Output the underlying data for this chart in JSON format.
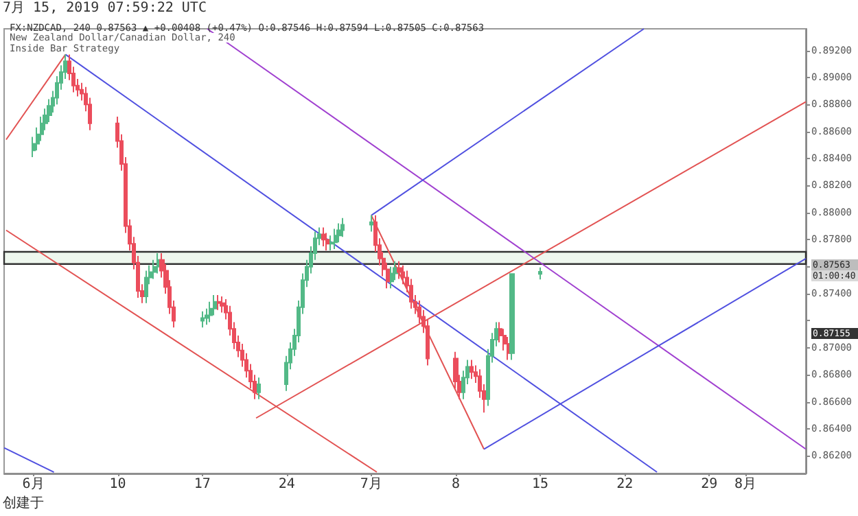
{
  "chart_data": {
    "type": "candlestick",
    "title": "FX:NZDCAD, 240 0.87563 ▲ +0.00408 (+0.47%) O:0.87546 H:0.87594 L:0.87505 C:0.87563",
    "subtitle": "New Zealand Dollar/Canadian Dollar, 240",
    "annotations": [
      "7月 15, 2019 07:59:22 UTC",
      "Inside Bar Strategy",
      "0.87563",
      "01:00:40",
      "0.87155",
      "创建于"
    ],
    "xlim": [
      "2019-05-31T14:00",
      "2019-08-06T00:00"
    ],
    "xticks": [
      {
        "value": "2019-06-03",
        "label": "6月"
      },
      {
        "value": "2019-06-10",
        "label": "10"
      },
      {
        "value": "2019-06-17",
        "label": "17"
      },
      {
        "value": "2019-06-24",
        "label": "24"
      },
      {
        "value": "2019-07-01",
        "label": "7月"
      },
      {
        "value": "2019-07-08",
        "label": "8"
      },
      {
        "value": "2019-07-15",
        "label": "15"
      },
      {
        "value": "2019-07-22",
        "label": "22"
      },
      {
        "value": "2019-07-29",
        "label": "29"
      },
      {
        "value": "2019-08-01",
        "label": "8月"
      }
    ],
    "ylim": [
      0.8607,
      0.8936
    ],
    "yticks": [
      {
        "value": 0.862,
        "label": "0.86200"
      },
      {
        "value": 0.864,
        "label": "0.86400"
      },
      {
        "value": 0.866,
        "label": "0.86600"
      },
      {
        "value": 0.868,
        "label": "0.86800"
      },
      {
        "value": 0.87,
        "label": "0.87000"
      },
      {
        "value": 0.872,
        "label": null
      },
      {
        "value": 0.874,
        "label": "0.87400"
      },
      {
        "value": 0.876,
        "label": null
      },
      {
        "value": 0.878,
        "label": "0.87800"
      },
      {
        "value": 0.88,
        "label": "0.88000"
      },
      {
        "value": 0.882,
        "label": "0.88200"
      },
      {
        "value": 0.884,
        "label": "0.88400"
      },
      {
        "value": 0.886,
        "label": "0.88600"
      },
      {
        "value": 0.888,
        "label": "0.88800"
      },
      {
        "value": 0.89,
        "label": "0.89000"
      },
      {
        "value": 0.892,
        "label": "0.89200"
      }
    ],
    "grid": false,
    "bands": [
      {
        "axis": "y",
        "from": 0.8762,
        "to": 0.8771,
        "color": "#eef7ee"
      }
    ],
    "series": [
      {
        "type": "candlestick",
        "x": [
          "2019-06-03T00:00",
          "2019-06-03T08:00",
          "2019-06-03T16:00",
          "2019-06-04T00:00",
          "2019-06-04T08:00",
          "2019-06-04T16:00",
          "2019-06-05T00:00",
          "2019-06-05T08:00",
          "2019-06-05T16:00",
          "2019-06-06T00:00",
          "2019-06-06T08:00",
          "2019-06-06T16:00",
          "2019-06-07T00:00",
          "2019-06-07T08:00",
          "2019-06-07T16:00",
          "2019-06-10T00:00",
          "2019-06-10T08:00",
          "2019-06-10T16:00",
          "2019-06-11T00:00",
          "2019-06-11T08:00",
          "2019-06-11T16:00",
          "2019-06-12T00:00",
          "2019-06-12T08:00",
          "2019-06-12T16:00",
          "2019-06-13T00:00",
          "2019-06-13T08:00",
          "2019-06-13T16:00",
          "2019-06-14T00:00",
          "2019-06-14T08:00",
          "2019-06-14T16:00",
          "2019-06-17T00:00",
          "2019-06-17T08:00",
          "2019-06-17T16:00",
          "2019-06-18T00:00",
          "2019-06-18T08:00",
          "2019-06-18T16:00",
          "2019-06-19T00:00",
          "2019-06-19T08:00",
          "2019-06-19T16:00",
          "2019-06-20T00:00",
          "2019-06-20T08:00",
          "2019-06-20T16:00",
          "2019-06-21T00:00",
          "2019-06-21T08:00",
          "2019-06-21T16:00",
          "2019-06-24T00:00",
          "2019-06-24T08:00",
          "2019-06-24T16:00",
          "2019-06-25T00:00",
          "2019-06-25T08:00",
          "2019-06-25T16:00",
          "2019-06-26T00:00",
          "2019-06-26T08:00",
          "2019-06-26T16:00",
          "2019-06-27T00:00",
          "2019-06-27T08:00",
          "2019-06-27T16:00",
          "2019-06-28T00:00",
          "2019-06-28T08:00",
          "2019-06-28T16:00",
          "2019-07-01T00:00",
          "2019-07-01T08:00",
          "2019-07-01T16:00",
          "2019-07-02T00:00",
          "2019-07-02T08:00",
          "2019-07-02T16:00",
          "2019-07-03T00:00",
          "2019-07-03T08:00",
          "2019-07-03T16:00",
          "2019-07-04T00:00",
          "2019-07-04T08:00",
          "2019-07-04T16:00",
          "2019-07-05T00:00",
          "2019-07-05T08:00",
          "2019-07-05T16:00",
          "2019-07-08T00:00",
          "2019-07-08T08:00",
          "2019-07-08T16:00",
          "2019-07-09T00:00",
          "2019-07-09T08:00",
          "2019-07-09T16:00",
          "2019-07-10T00:00",
          "2019-07-10T08:00",
          "2019-07-10T16:00",
          "2019-07-11T00:00",
          "2019-07-11T08:00",
          "2019-07-11T16:00",
          "2019-07-12T00:00",
          "2019-07-12T08:00",
          "2019-07-12T16:00",
          "2019-07-15T00:00"
        ],
        "ohlc": [
          [
            0.8846,
            0.8856,
            0.8841,
            0.8851
          ],
          [
            0.8851,
            0.8863,
            0.8846,
            0.8858
          ],
          [
            0.8858,
            0.8871,
            0.8853,
            0.8866
          ],
          [
            0.8866,
            0.8877,
            0.8861,
            0.8872
          ],
          [
            0.8872,
            0.8884,
            0.8867,
            0.8879
          ],
          [
            0.8879,
            0.889,
            0.8874,
            0.8885
          ],
          [
            0.8885,
            0.8901,
            0.888,
            0.8896
          ],
          [
            0.8896,
            0.8909,
            0.8891,
            0.8904
          ],
          [
            0.8904,
            0.8917,
            0.8899,
            0.8912
          ],
          [
            0.8912,
            0.8917,
            0.8898,
            0.8903
          ],
          [
            0.8903,
            0.8908,
            0.8889,
            0.8894
          ],
          [
            0.8894,
            0.8899,
            0.8886,
            0.8891
          ],
          [
            0.8891,
            0.8896,
            0.8883,
            0.8888
          ],
          [
            0.8888,
            0.8893,
            0.8875,
            0.888
          ],
          [
            0.888,
            0.8885,
            0.8861,
            0.8866
          ],
          [
            0.8866,
            0.8871,
            0.8848,
            0.8853
          ],
          [
            0.8853,
            0.8858,
            0.8831,
            0.8836
          ],
          [
            0.8836,
            0.8841,
            0.8785,
            0.879
          ],
          [
            0.879,
            0.8795,
            0.8772,
            0.8777
          ],
          [
            0.8777,
            0.8782,
            0.8758,
            0.8763
          ],
          [
            0.8763,
            0.8768,
            0.8737,
            0.8742
          ],
          [
            0.8742,
            0.8747,
            0.8733,
            0.8738
          ],
          [
            0.8738,
            0.8757,
            0.8733,
            0.8752
          ],
          [
            0.8752,
            0.8761,
            0.8747,
            0.8756
          ],
          [
            0.8756,
            0.8765,
            0.8751,
            0.876
          ],
          [
            0.876,
            0.877,
            0.8755,
            0.8765
          ],
          [
            0.8765,
            0.877,
            0.8752,
            0.8757
          ],
          [
            0.8757,
            0.8762,
            0.874,
            0.8745
          ],
          [
            0.8745,
            0.875,
            0.8725,
            0.873
          ],
          [
            0.873,
            0.8735,
            0.8715,
            0.872
          ],
          [
            0.872,
            0.8727,
            0.8715,
            0.8722
          ],
          [
            0.8722,
            0.8729,
            0.8717,
            0.8724
          ],
          [
            0.8724,
            0.8734,
            0.8719,
            0.8729
          ],
          [
            0.8729,
            0.8739,
            0.8724,
            0.8734
          ],
          [
            0.8734,
            0.8739,
            0.8728,
            0.8733
          ],
          [
            0.8733,
            0.8738,
            0.8726,
            0.8731
          ],
          [
            0.8731,
            0.8736,
            0.8721,
            0.8726
          ],
          [
            0.8726,
            0.8731,
            0.8709,
            0.8714
          ],
          [
            0.8714,
            0.8719,
            0.8699,
            0.8704
          ],
          [
            0.8704,
            0.8709,
            0.8693,
            0.8698
          ],
          [
            0.8698,
            0.8703,
            0.8686,
            0.8691
          ],
          [
            0.8691,
            0.8696,
            0.8678,
            0.8683
          ],
          [
            0.8683,
            0.8688,
            0.867,
            0.8675
          ],
          [
            0.8675,
            0.868,
            0.8662,
            0.8667
          ],
          [
            0.8667,
            0.8678,
            0.8662,
            0.8673
          ],
          [
            0.8673,
            0.8694,
            0.8668,
            0.8689
          ],
          [
            0.8689,
            0.8704,
            0.8684,
            0.8699
          ],
          [
            0.8699,
            0.8714,
            0.8694,
            0.8709
          ],
          [
            0.8709,
            0.8735,
            0.8704,
            0.873
          ],
          [
            0.873,
            0.8755,
            0.8725,
            0.875
          ],
          [
            0.875,
            0.8765,
            0.8745,
            0.876
          ],
          [
            0.876,
            0.8775,
            0.8755,
            0.877
          ],
          [
            0.877,
            0.8786,
            0.8765,
            0.8781
          ],
          [
            0.8781,
            0.8789,
            0.8776,
            0.8784
          ],
          [
            0.8784,
            0.8789,
            0.8775,
            0.878
          ],
          [
            0.878,
            0.8785,
            0.8772,
            0.8777
          ],
          [
            0.8777,
            0.8783,
            0.8772,
            0.8778
          ],
          [
            0.8778,
            0.8788,
            0.8773,
            0.8783
          ],
          [
            0.8783,
            0.8792,
            0.8778,
            0.8787
          ],
          [
            0.8787,
            0.8796,
            0.8782,
            0.8791
          ],
          [
            0.8791,
            0.8798,
            0.8786,
            0.8793
          ],
          [
            0.8793,
            0.8798,
            0.8771,
            0.8776
          ],
          [
            0.8776,
            0.8781,
            0.8761,
            0.8766
          ],
          [
            0.8766,
            0.8771,
            0.8753,
            0.8758
          ],
          [
            0.8758,
            0.8763,
            0.8744,
            0.8749
          ],
          [
            0.8749,
            0.876,
            0.8744,
            0.8755
          ],
          [
            0.8755,
            0.8764,
            0.875,
            0.8759
          ],
          [
            0.8759,
            0.8764,
            0.8751,
            0.8756
          ],
          [
            0.8756,
            0.8761,
            0.8747,
            0.8752
          ],
          [
            0.8752,
            0.8757,
            0.8741,
            0.8746
          ],
          [
            0.8746,
            0.8751,
            0.8729,
            0.8734
          ],
          [
            0.8734,
            0.8739,
            0.8725,
            0.873
          ],
          [
            0.873,
            0.8735,
            0.8718,
            0.8723
          ],
          [
            0.8723,
            0.8728,
            0.8711,
            0.8716
          ],
          [
            0.8716,
            0.8721,
            0.8687,
            0.8692
          ],
          [
            0.8692,
            0.8697,
            0.867,
            0.8675
          ],
          [
            0.8675,
            0.868,
            0.8662,
            0.8667
          ],
          [
            0.8667,
            0.8683,
            0.8662,
            0.8678
          ],
          [
            0.8678,
            0.8691,
            0.8673,
            0.8686
          ],
          [
            0.8686,
            0.8691,
            0.8677,
            0.8682
          ],
          [
            0.8682,
            0.8687,
            0.8674,
            0.8679
          ],
          [
            0.8679,
            0.8684,
            0.8663,
            0.8668
          ],
          [
            0.8668,
            0.8673,
            0.8652,
            0.8662
          ],
          [
            0.8662,
            0.8699,
            0.8657,
            0.8694
          ],
          [
            0.8694,
            0.8711,
            0.8689,
            0.8706
          ],
          [
            0.8706,
            0.8719,
            0.8701,
            0.8714
          ],
          [
            0.8714,
            0.8719,
            0.8704,
            0.8709
          ],
          [
            0.8709,
            0.8714,
            0.8698,
            0.8703
          ],
          [
            0.8703,
            0.8708,
            0.8691,
            0.8696
          ],
          [
            0.8696,
            0.87551,
            0.8691,
            0.87546
          ],
          [
            0.87546,
            0.87594,
            0.87505,
            0.87563
          ]
        ]
      },
      {
        "type": "line",
        "color": "#e25252",
        "x": [
          "2019-05-31T18:00",
          "2019-06-05T16:00"
        ],
        "values": [
          0.8854,
          0.8917
        ]
      },
      {
        "type": "line",
        "color": "#5050e0",
        "x": [
          "2019-06-05T16:00",
          "2019-07-24T16:00"
        ],
        "values": [
          0.8917,
          0.8608
        ]
      },
      {
        "type": "line",
        "color": "#e25252",
        "x": [
          "2019-05-31T18:00",
          "2019-07-01T11:00"
        ],
        "values": [
          0.8787,
          0.8608
        ]
      },
      {
        "type": "line",
        "color": "#e25252",
        "x": [
          "2019-06-21T11:00",
          "2019-08-06T00:00"
        ],
        "values": [
          0.8648,
          0.8882
        ]
      },
      {
        "type": "line",
        "color": "#a040d0",
        "x": [
          "2019-06-17T10:00",
          "2019-08-06T00:00"
        ],
        "values": [
          0.8936,
          0.8625
        ]
      },
      {
        "type": "line",
        "color": "#5050e0",
        "x": [
          "2019-07-01T00:00",
          "2019-07-23T14:00"
        ],
        "values": [
          0.8798,
          0.8936
        ]
      },
      {
        "type": "line",
        "color": "#e25252",
        "x": [
          "2019-07-01T00:00",
          "2019-07-10T08:00"
        ],
        "values": [
          0.8798,
          0.8625
        ]
      },
      {
        "type": "line",
        "color": "#5050e0",
        "x": [
          "2019-07-10T08:00",
          "2019-08-06T00:00"
        ],
        "values": [
          0.8625,
          0.8766
        ]
      },
      {
        "type": "line",
        "color": "#5050e0",
        "x": [
          "2019-05-31T14:00",
          "2019-06-04T17:00"
        ],
        "values": [
          0.8626,
          0.8608
        ]
      }
    ]
  }
}
